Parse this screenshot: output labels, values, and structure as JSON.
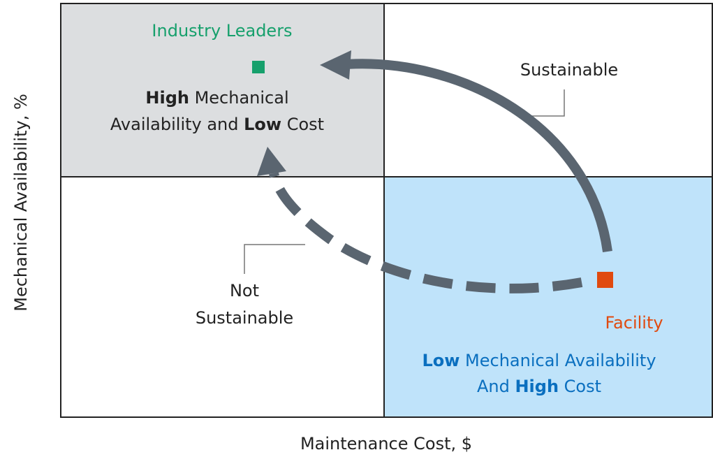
{
  "quadrants": {
    "top_left": {
      "title": "Industry Leaders",
      "description": [
        [
          {
            "text": "High",
            "bold": true
          },
          {
            "text": " Mechanical",
            "bold": false
          }
        ],
        [
          {
            "text": "Availability and ",
            "bold": false
          },
          {
            "text": "Low",
            "bold": true
          },
          {
            "text": " Cost",
            "bold": false
          }
        ]
      ]
    },
    "bottom_right": {
      "title": "Facility",
      "description": [
        [
          {
            "text": "Low",
            "bold": true
          },
          {
            "text": " Mechanical Availability",
            "bold": false
          }
        ],
        [
          {
            "text": "And ",
            "bold": false
          },
          {
            "text": "High",
            "bold": true
          },
          {
            "text": " Cost",
            "bold": false
          }
        ]
      ]
    }
  },
  "paths": {
    "sustainable": "Sustainable",
    "not_sustainable": [
      "Not",
      "Sustainable"
    ]
  },
  "axes": {
    "x_label": "Maintenance Cost, $",
    "y_label": "Mechanical Availability, %"
  }
}
